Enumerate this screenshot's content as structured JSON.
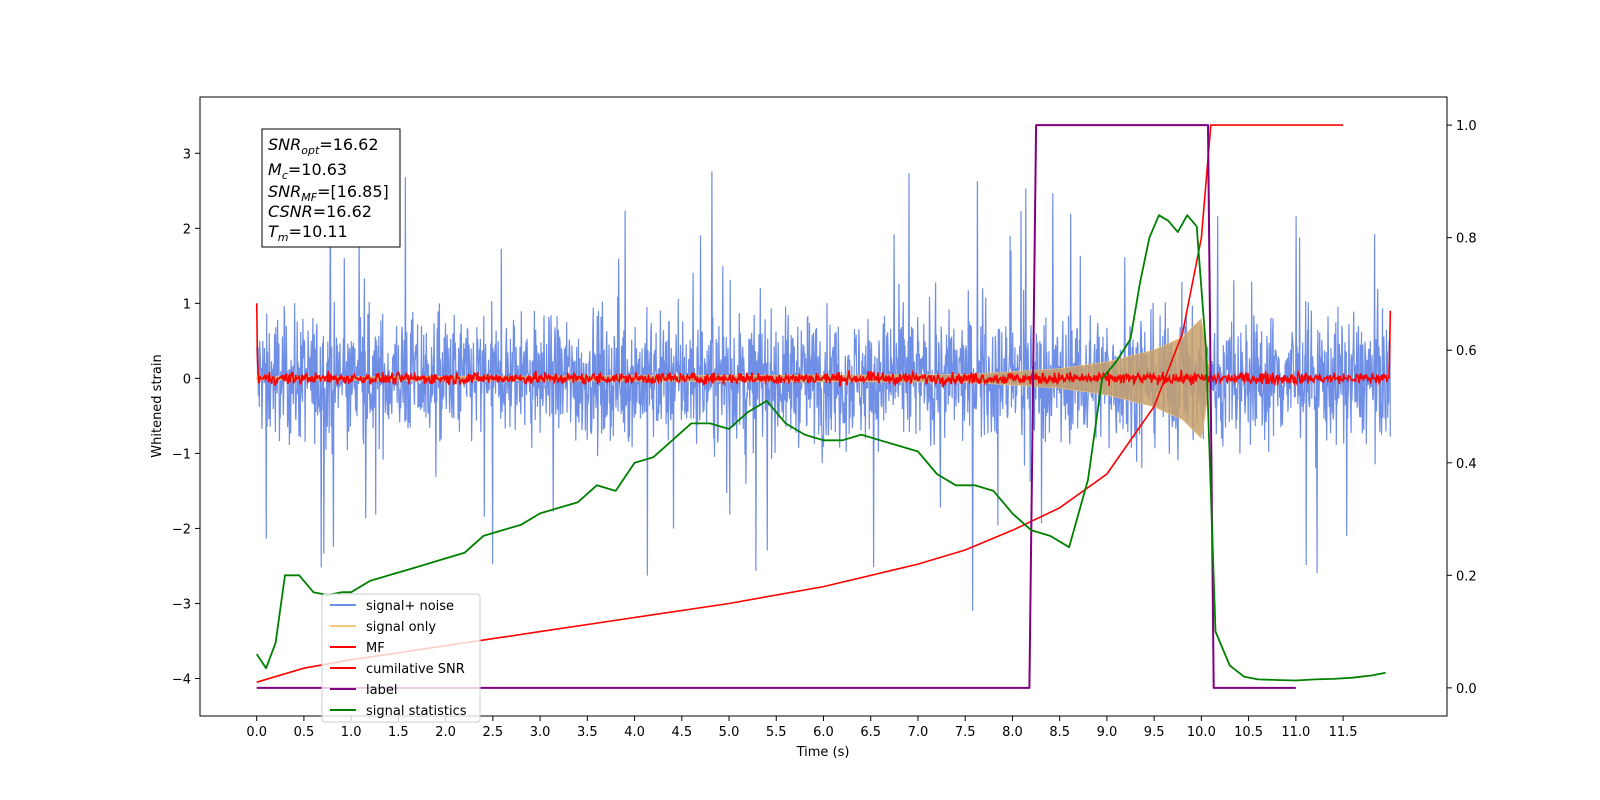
{
  "chart_data": {
    "type": "line",
    "xlabel": "Time (s)",
    "ylabel": "Whitened strain",
    "xlim": [
      -0.6,
      12.6
    ],
    "ylim": [
      -4.5,
      3.75
    ],
    "y2lim": [
      -0.05,
      1.05
    ],
    "x_ticks": [
      "0.0",
      "0.5",
      "1.0",
      "1.5",
      "2.0",
      "2.5",
      "3.0",
      "3.5",
      "4.0",
      "4.5",
      "5.0",
      "5.5",
      "6.0",
      "6.5",
      "7.0",
      "7.5",
      "8.0",
      "8.5",
      "9.0",
      "9.5",
      "10.0",
      "10.5",
      "11.0",
      "11.5"
    ],
    "y_ticks": [
      "3",
      "2",
      "1",
      "0",
      "−1",
      "−2",
      "−3",
      "−4"
    ],
    "y2_ticks": [
      "1.0",
      "0.8",
      "0.6",
      "0.4",
      "0.2",
      "0.0"
    ],
    "grid": false,
    "legend_position": "lower-left",
    "info_box": {
      "snr_opt": {
        "base": "SNR",
        "sub": "opt",
        "value": "=16.62"
      },
      "mc": {
        "base": "M",
        "sub": "c",
        "value": "=10.63"
      },
      "snr_mf": {
        "base": "SNR",
        "sub": "MF",
        "value": "=[16.85]"
      },
      "csnr": {
        "base": "CSNR",
        "sub": "",
        "value": "=16.62"
      },
      "tm": {
        "base": "T",
        "sub": "m",
        "value": "=10.11"
      }
    },
    "series": [
      {
        "name": "signal+ noise",
        "color": "#6f8ee6",
        "axis": "left",
        "description_points": {
          "t_start": 0.0,
          "t_end": 12.0,
          "typical_range": [
            -1.6,
            1.9
          ],
          "max": 2.9,
          "min": -3.35
        }
      },
      {
        "name": "signal only",
        "color": "#f5c77e",
        "axis": "left",
        "envelope": {
          "t": [
            0.0,
            7.5,
            8.5,
            9.0,
            9.5,
            9.8,
            10.0,
            10.1
          ],
          "amp": [
            0.02,
            0.05,
            0.13,
            0.22,
            0.38,
            0.55,
            0.8,
            0.0
          ]
        }
      },
      {
        "name": "MF",
        "color": "#ff0000",
        "axis": "left",
        "noise_amplitude": 0.12
      },
      {
        "name": "cumilative SNR",
        "color": "#ff0000",
        "axis": "right",
        "x": [
          0.0,
          0.5,
          1.0,
          2.0,
          3.0,
          4.0,
          5.0,
          6.0,
          7.0,
          7.5,
          8.0,
          8.5,
          9.0,
          9.5,
          9.8,
          10.0,
          10.1,
          11.5
        ],
        "y": [
          0.01,
          0.035,
          0.05,
          0.075,
          0.1,
          0.125,
          0.15,
          0.18,
          0.22,
          0.245,
          0.28,
          0.32,
          0.38,
          0.5,
          0.63,
          0.8,
          1.0,
          1.0
        ]
      },
      {
        "name": "label",
        "color": "#800080",
        "axis": "right",
        "x": [
          0.0,
          8.18,
          8.25,
          10.07,
          10.13,
          11.0
        ],
        "y": [
          0.0,
          0.0,
          1.0,
          1.0,
          0.0,
          0.0
        ]
      },
      {
        "name": "signal statistics",
        "color": "#008000",
        "axis": "right",
        "x": [
          0.0,
          0.1,
          0.2,
          0.3,
          0.45,
          0.6,
          0.75,
          0.9,
          1.0,
          1.2,
          1.4,
          1.6,
          1.8,
          2.0,
          2.2,
          2.4,
          2.6,
          2.8,
          3.0,
          3.2,
          3.4,
          3.6,
          3.8,
          4.0,
          4.2,
          4.4,
          4.6,
          4.8,
          5.0,
          5.2,
          5.4,
          5.6,
          5.8,
          6.0,
          6.2,
          6.4,
          6.6,
          6.8,
          7.0,
          7.2,
          7.4,
          7.6,
          7.8,
          8.0,
          8.2,
          8.4,
          8.6,
          8.8,
          8.95,
          9.1,
          9.25,
          9.35,
          9.45,
          9.55,
          9.65,
          9.75,
          9.85,
          9.95,
          10.05,
          10.15,
          10.3,
          10.45,
          10.6,
          10.8,
          11.0,
          11.2,
          11.4,
          11.6,
          11.8,
          11.95
        ],
        "y": [
          0.06,
          0.035,
          0.08,
          0.2,
          0.2,
          0.17,
          0.165,
          0.17,
          0.17,
          0.19,
          0.2,
          0.21,
          0.22,
          0.23,
          0.24,
          0.27,
          0.28,
          0.29,
          0.31,
          0.32,
          0.33,
          0.36,
          0.35,
          0.4,
          0.41,
          0.44,
          0.47,
          0.47,
          0.46,
          0.49,
          0.51,
          0.47,
          0.45,
          0.44,
          0.44,
          0.45,
          0.44,
          0.43,
          0.42,
          0.38,
          0.36,
          0.36,
          0.35,
          0.31,
          0.28,
          0.27,
          0.25,
          0.37,
          0.55,
          0.58,
          0.62,
          0.72,
          0.8,
          0.84,
          0.83,
          0.81,
          0.84,
          0.82,
          0.6,
          0.1,
          0.04,
          0.02,
          0.015,
          0.014,
          0.013,
          0.015,
          0.016,
          0.018,
          0.022,
          0.027
        ]
      }
    ]
  }
}
